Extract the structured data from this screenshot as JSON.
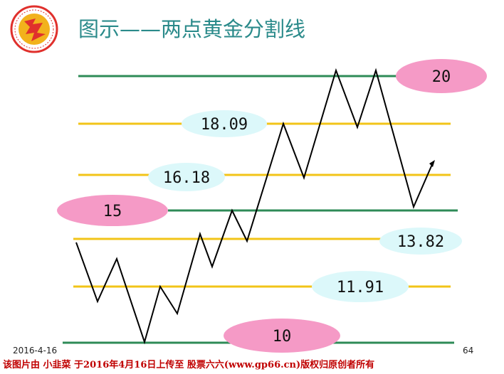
{
  "slide": {
    "title": "图示——两点黄金分割线",
    "date": "2016-4-16",
    "page_number": "64",
    "credit": "该图片由 小韭菜 于2016年4月16日上传至 股票六六(www.gp66.cn)版权归原创者所有"
  },
  "logo": {
    "icon": "university-seal-icon",
    "colors": {
      "ring": "#e0302c",
      "fill": "#f2b21c",
      "emblem": "#e0302c"
    }
  },
  "colors": {
    "title": "#2a8a8a",
    "golden_line": "#f2c418",
    "green_line": "#2e8b57",
    "pink_label": "#f59ac6",
    "cyan_label": "#dcf8fa",
    "price_path": "#000000",
    "credit": "#c00000"
  },
  "levels": [
    {
      "value": "20",
      "kind": "green"
    },
    {
      "value": "18.09",
      "kind": "golden"
    },
    {
      "value": "16.18",
      "kind": "golden"
    },
    {
      "value": "15",
      "kind": "green"
    },
    {
      "value": "13.82",
      "kind": "golden"
    },
    {
      "value": "11.91",
      "kind": "golden"
    },
    {
      "value": "10",
      "kind": "green"
    }
  ]
}
